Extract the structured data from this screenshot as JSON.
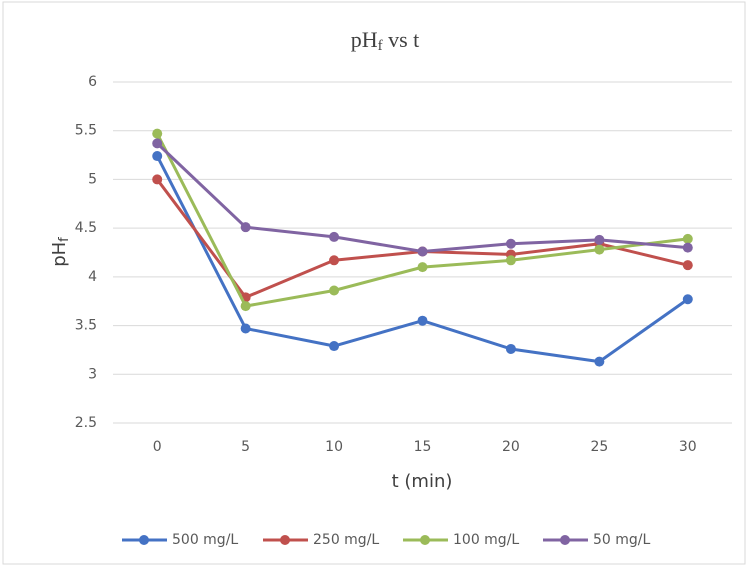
{
  "chart_data": {
    "type": "line",
    "title": [
      "pH",
      "f",
      " vs t"
    ],
    "x_label": "t (min)",
    "y_label": [
      "pH",
      "f"
    ],
    "x": [
      0,
      5,
      10,
      15,
      20,
      25,
      30
    ],
    "xlim": [
      -2.5,
      32.5
    ],
    "xticks": [
      0,
      5,
      10,
      15,
      20,
      25,
      30
    ],
    "ylim": [
      2.5,
      6
    ],
    "yticks": [
      2.5,
      3,
      3.5,
      4,
      4.5,
      5,
      5.5,
      6
    ],
    "grid": true,
    "legend": "bottom",
    "series": [
      {
        "name": "500 mg/L",
        "color": "#4472c4",
        "values": [
          5.24,
          3.47,
          3.29,
          3.55,
          3.26,
          3.13,
          3.77
        ]
      },
      {
        "name": "250 mg/L",
        "color": "#c0504d",
        "values": [
          5.0,
          3.79,
          4.17,
          4.26,
          4.23,
          4.34,
          4.12
        ]
      },
      {
        "name": "100 mg/L",
        "color": "#9bbb59",
        "values": [
          5.47,
          3.7,
          3.86,
          4.1,
          4.17,
          4.28,
          4.39
        ]
      },
      {
        "name": "50 mg/L",
        "color": "#8064a2",
        "values": [
          5.37,
          4.51,
          4.41,
          4.26,
          4.34,
          4.38,
          4.3
        ]
      }
    ]
  }
}
